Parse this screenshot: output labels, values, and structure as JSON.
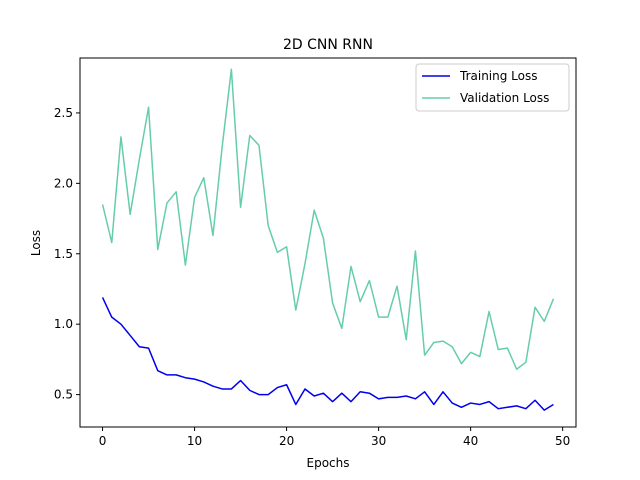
{
  "chart_data": {
    "type": "line",
    "title": "2D CNN RNN",
    "xlabel": "Epochs",
    "ylabel": "Loss",
    "xlim": [
      -2.45,
      51.45
    ],
    "ylim": [
      0.27,
      2.89
    ],
    "xticks": [
      0,
      10,
      20,
      30,
      40,
      50
    ],
    "yticks": [
      0.5,
      1.0,
      1.5,
      2.0,
      2.5
    ],
    "xtick_labels": [
      "0",
      "10",
      "20",
      "30",
      "40",
      "50"
    ],
    "ytick_labels": [
      "0.5",
      "1.0",
      "1.5",
      "2.0",
      "2.5"
    ],
    "grid": false,
    "legend_position": "top-right",
    "x": [
      0,
      1,
      2,
      3,
      4,
      5,
      6,
      7,
      8,
      9,
      10,
      11,
      12,
      13,
      14,
      15,
      16,
      17,
      18,
      19,
      20,
      21,
      22,
      23,
      24,
      25,
      26,
      27,
      28,
      29,
      30,
      31,
      32,
      33,
      34,
      35,
      36,
      37,
      38,
      39,
      40,
      41,
      42,
      43,
      44,
      45,
      46,
      47,
      48,
      49
    ],
    "series": [
      {
        "name": "Training Loss",
        "color": "#0000ee",
        "values": [
          1.19,
          1.05,
          1.0,
          0.92,
          0.84,
          0.83,
          0.67,
          0.64,
          0.64,
          0.62,
          0.61,
          0.59,
          0.56,
          0.54,
          0.54,
          0.6,
          0.53,
          0.5,
          0.5,
          0.55,
          0.57,
          0.43,
          0.54,
          0.49,
          0.51,
          0.45,
          0.51,
          0.45,
          0.52,
          0.51,
          0.47,
          0.48,
          0.48,
          0.49,
          0.47,
          0.52,
          0.43,
          0.52,
          0.44,
          0.41,
          0.44,
          0.43,
          0.45,
          0.4,
          0.41,
          0.42,
          0.4,
          0.46,
          0.39,
          0.43
        ]
      },
      {
        "name": "Validation Loss",
        "color": "#66cdaa",
        "values": [
          1.85,
          1.58,
          2.33,
          1.78,
          2.17,
          2.54,
          1.53,
          1.86,
          1.94,
          1.42,
          1.9,
          2.04,
          1.63,
          2.26,
          2.81,
          1.83,
          2.34,
          2.27,
          1.7,
          1.51,
          1.55,
          1.1,
          1.43,
          1.81,
          1.61,
          1.15,
          0.97,
          1.41,
          1.16,
          1.31,
          1.05,
          1.05,
          1.27,
          0.89,
          1.52,
          0.78,
          0.87,
          0.88,
          0.84,
          0.72,
          0.8,
          0.77,
          1.09,
          0.82,
          0.83,
          0.68,
          0.73,
          1.12,
          1.02,
          1.18
        ]
      }
    ]
  }
}
